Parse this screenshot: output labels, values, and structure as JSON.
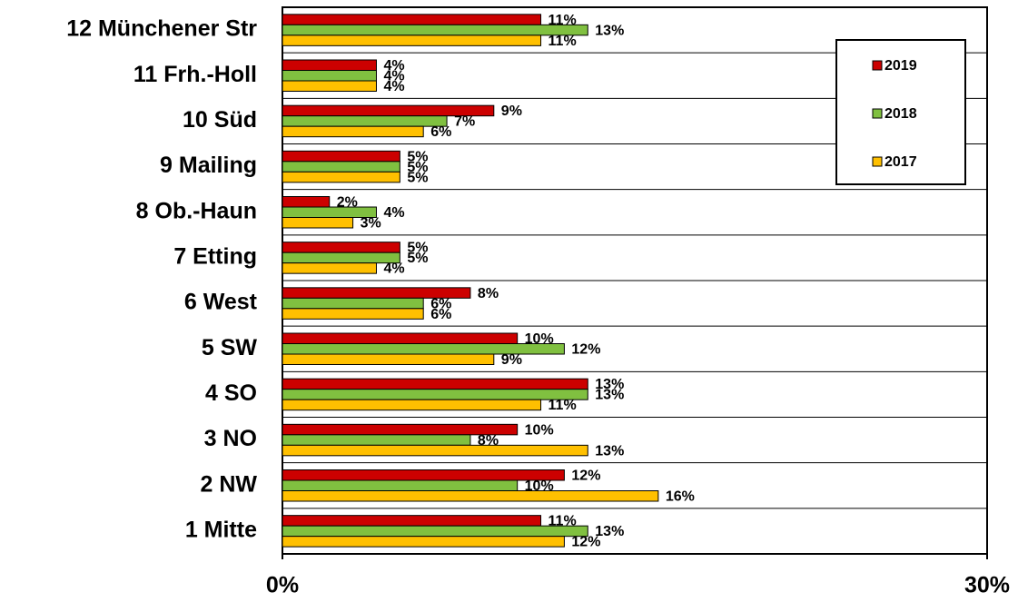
{
  "chart_data": {
    "type": "bar",
    "orientation": "horizontal",
    "categories": [
      "12  Münchener Str",
      "11  Frh.-Holl",
      "10  Süd",
      "9  Mailing",
      "8  Ob.-Haun",
      "7  Etting",
      "6  West",
      "5  SW",
      "4  SO",
      "3  NO",
      "2  NW",
      "1  Mitte"
    ],
    "series": [
      {
        "name": "2019",
        "color": "#cc0000",
        "values": [
          11,
          4,
          9,
          5,
          2,
          5,
          8,
          10,
          13,
          10,
          12,
          11
        ],
        "value_labels": [
          "11%",
          "4%",
          "9%",
          "5%",
          "2%",
          "5%",
          "8%",
          "10%",
          "13%",
          "10%",
          "12%",
          "11%"
        ]
      },
      {
        "name": "2018",
        "color": "#80c040",
        "values": [
          13,
          4,
          7,
          5,
          4,
          5,
          6,
          12,
          13,
          8,
          10,
          13
        ],
        "value_labels": [
          "13%",
          "4%",
          "7%",
          "5%",
          "4%",
          "5%",
          "6%",
          "12%",
          "13%",
          "8%",
          "10%",
          "13%"
        ]
      },
      {
        "name": "2017",
        "color": "#ffc000",
        "values": [
          11,
          4,
          6,
          5,
          3,
          4,
          6,
          9,
          11,
          13,
          16,
          12
        ],
        "value_labels": [
          "11%",
          "4%",
          "6%",
          "5%",
          "3%",
          "4%",
          "6%",
          "9%",
          "11%",
          "13%",
          "16%",
          "12%"
        ]
      }
    ],
    "xlim": [
      0,
      30
    ],
    "xticks": [
      {
        "value": 0,
        "label": "0%"
      },
      {
        "value": 30,
        "label": "30%"
      }
    ],
    "legend": "upper right"
  }
}
